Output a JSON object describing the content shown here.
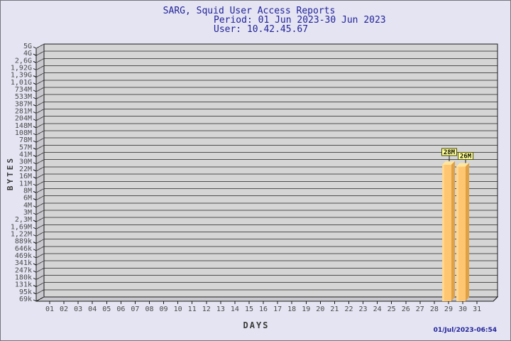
{
  "header": {
    "title": "SARG, Squid User Access Reports",
    "period": "Period: 01 Jun 2023-30 Jun 2023",
    "user": "User: 10.42.45.67"
  },
  "footer": {
    "timestamp": "01/Jul/2023-06:54"
  },
  "chart_data": {
    "type": "bar",
    "title": "SARG, Squid User Access Reports",
    "subtitle": "Period: 01 Jun 2023-30 Jun 2023",
    "user": "User: 10.42.45.67",
    "xlabel": "DAYS",
    "ylabel": "BYTES",
    "y_scale": "log",
    "y_range_labels": [
      "69k",
      "5G"
    ],
    "grid": true,
    "y_tick_labels": [
      "5G",
      "4G",
      "2,6G",
      "1,92G",
      "1,39G",
      "1,01G",
      "734M",
      "533M",
      "387M",
      "281M",
      "204M",
      "148M",
      "108M",
      "78M",
      "57M",
      "41M",
      "30M",
      "22M",
      "16M",
      "11M",
      "8M",
      "6M",
      "4M",
      "3M",
      "2,3M",
      "1,69M",
      "1,22M",
      "889k",
      "646k",
      "469k",
      "341k",
      "247k",
      "180k",
      "131k",
      "95k",
      "69k"
    ],
    "y_tick_values": [
      5000000000,
      4000000000,
      2600000000,
      1920000000,
      1390000000,
      1010000000,
      734000000,
      533000000,
      387000000,
      281000000,
      204000000,
      148000000,
      108000000,
      78000000,
      57000000,
      41000000,
      30000000,
      22000000,
      16000000,
      11000000,
      8000000,
      6000000,
      4000000,
      3000000,
      2300000,
      1690000,
      1220000,
      889000,
      646000,
      469000,
      341000,
      247000,
      180000,
      131000,
      95000,
      69000
    ],
    "x_tick_labels": [
      "01",
      "02",
      "03",
      "04",
      "05",
      "06",
      "07",
      "08",
      "09",
      "10",
      "11",
      "12",
      "13",
      "14",
      "15",
      "16",
      "17",
      "18",
      "19",
      "20",
      "21",
      "22",
      "23",
      "24",
      "25",
      "26",
      "27",
      "28",
      "29",
      "30",
      "31"
    ],
    "bars": [
      {
        "day": 29,
        "value": 28000000,
        "value_label": "28M"
      },
      {
        "day": 30,
        "value": 26000000,
        "value_label": "26M"
      }
    ],
    "colors": {
      "background": "#E4E4F2",
      "frame_border": "#75757D",
      "plot_bg": "#D5D5D5",
      "wall": "#C8C8CE",
      "grid": "#4F4F4F",
      "axis": "#1A1A1A",
      "tick_text": "#4A4A4A",
      "title_text": "#22229B",
      "bar_face": "#FFC671",
      "bar_edge": "#FFD88E",
      "bar_side": "#E0A145",
      "bar_top": "#FFE59E",
      "label_box_bg": "#FFFF9E",
      "label_box_border": "#4D4D00"
    }
  }
}
